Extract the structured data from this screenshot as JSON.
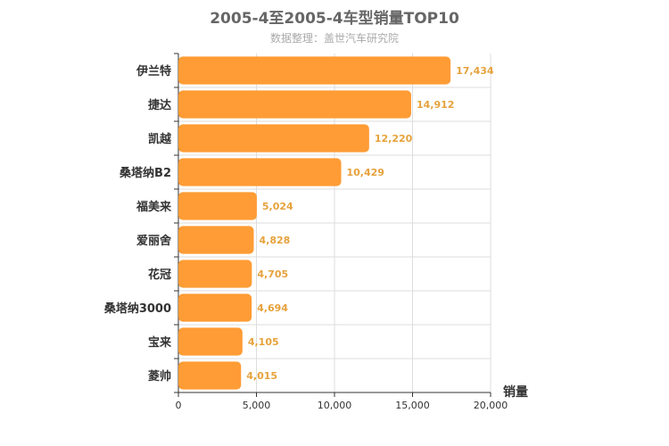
{
  "title": "2005-4至2005-4车型销量TOP10",
  "subtitle": "数据整理：盖世汽车研究院",
  "colors": {
    "bar": "#ff9c35",
    "label": "#e6a23c",
    "grid": "#dddddd",
    "axis": "#333333"
  },
  "chart_data": {
    "type": "bar",
    "orientation": "horizontal",
    "title": "2005-4至2005-4车型销量TOP10",
    "subtitle": "数据整理：盖世汽车研究院",
    "xlabel": "销量",
    "ylabel": "",
    "categories": [
      "伊兰特",
      "捷达",
      "凯越",
      "桑塔纳B2",
      "福美来",
      "爱丽舍",
      "花冠",
      "桑塔纳3000",
      "宝来",
      "菱帅"
    ],
    "values": [
      17434,
      14912,
      12220,
      10429,
      5024,
      4828,
      4705,
      4694,
      4105,
      4015
    ],
    "value_labels": [
      "17,434",
      "14,912",
      "12,220",
      "10,429",
      "5,024",
      "4,828",
      "4,705",
      "4,694",
      "4,105",
      "4,015"
    ],
    "xlim": [
      0,
      20000
    ],
    "xticks": [
      0,
      5000,
      10000,
      15000,
      20000
    ],
    "xtick_labels": [
      "0",
      "5,000",
      "10,000",
      "15,000",
      "20,000"
    ],
    "grid": true,
    "legend": "none"
  }
}
